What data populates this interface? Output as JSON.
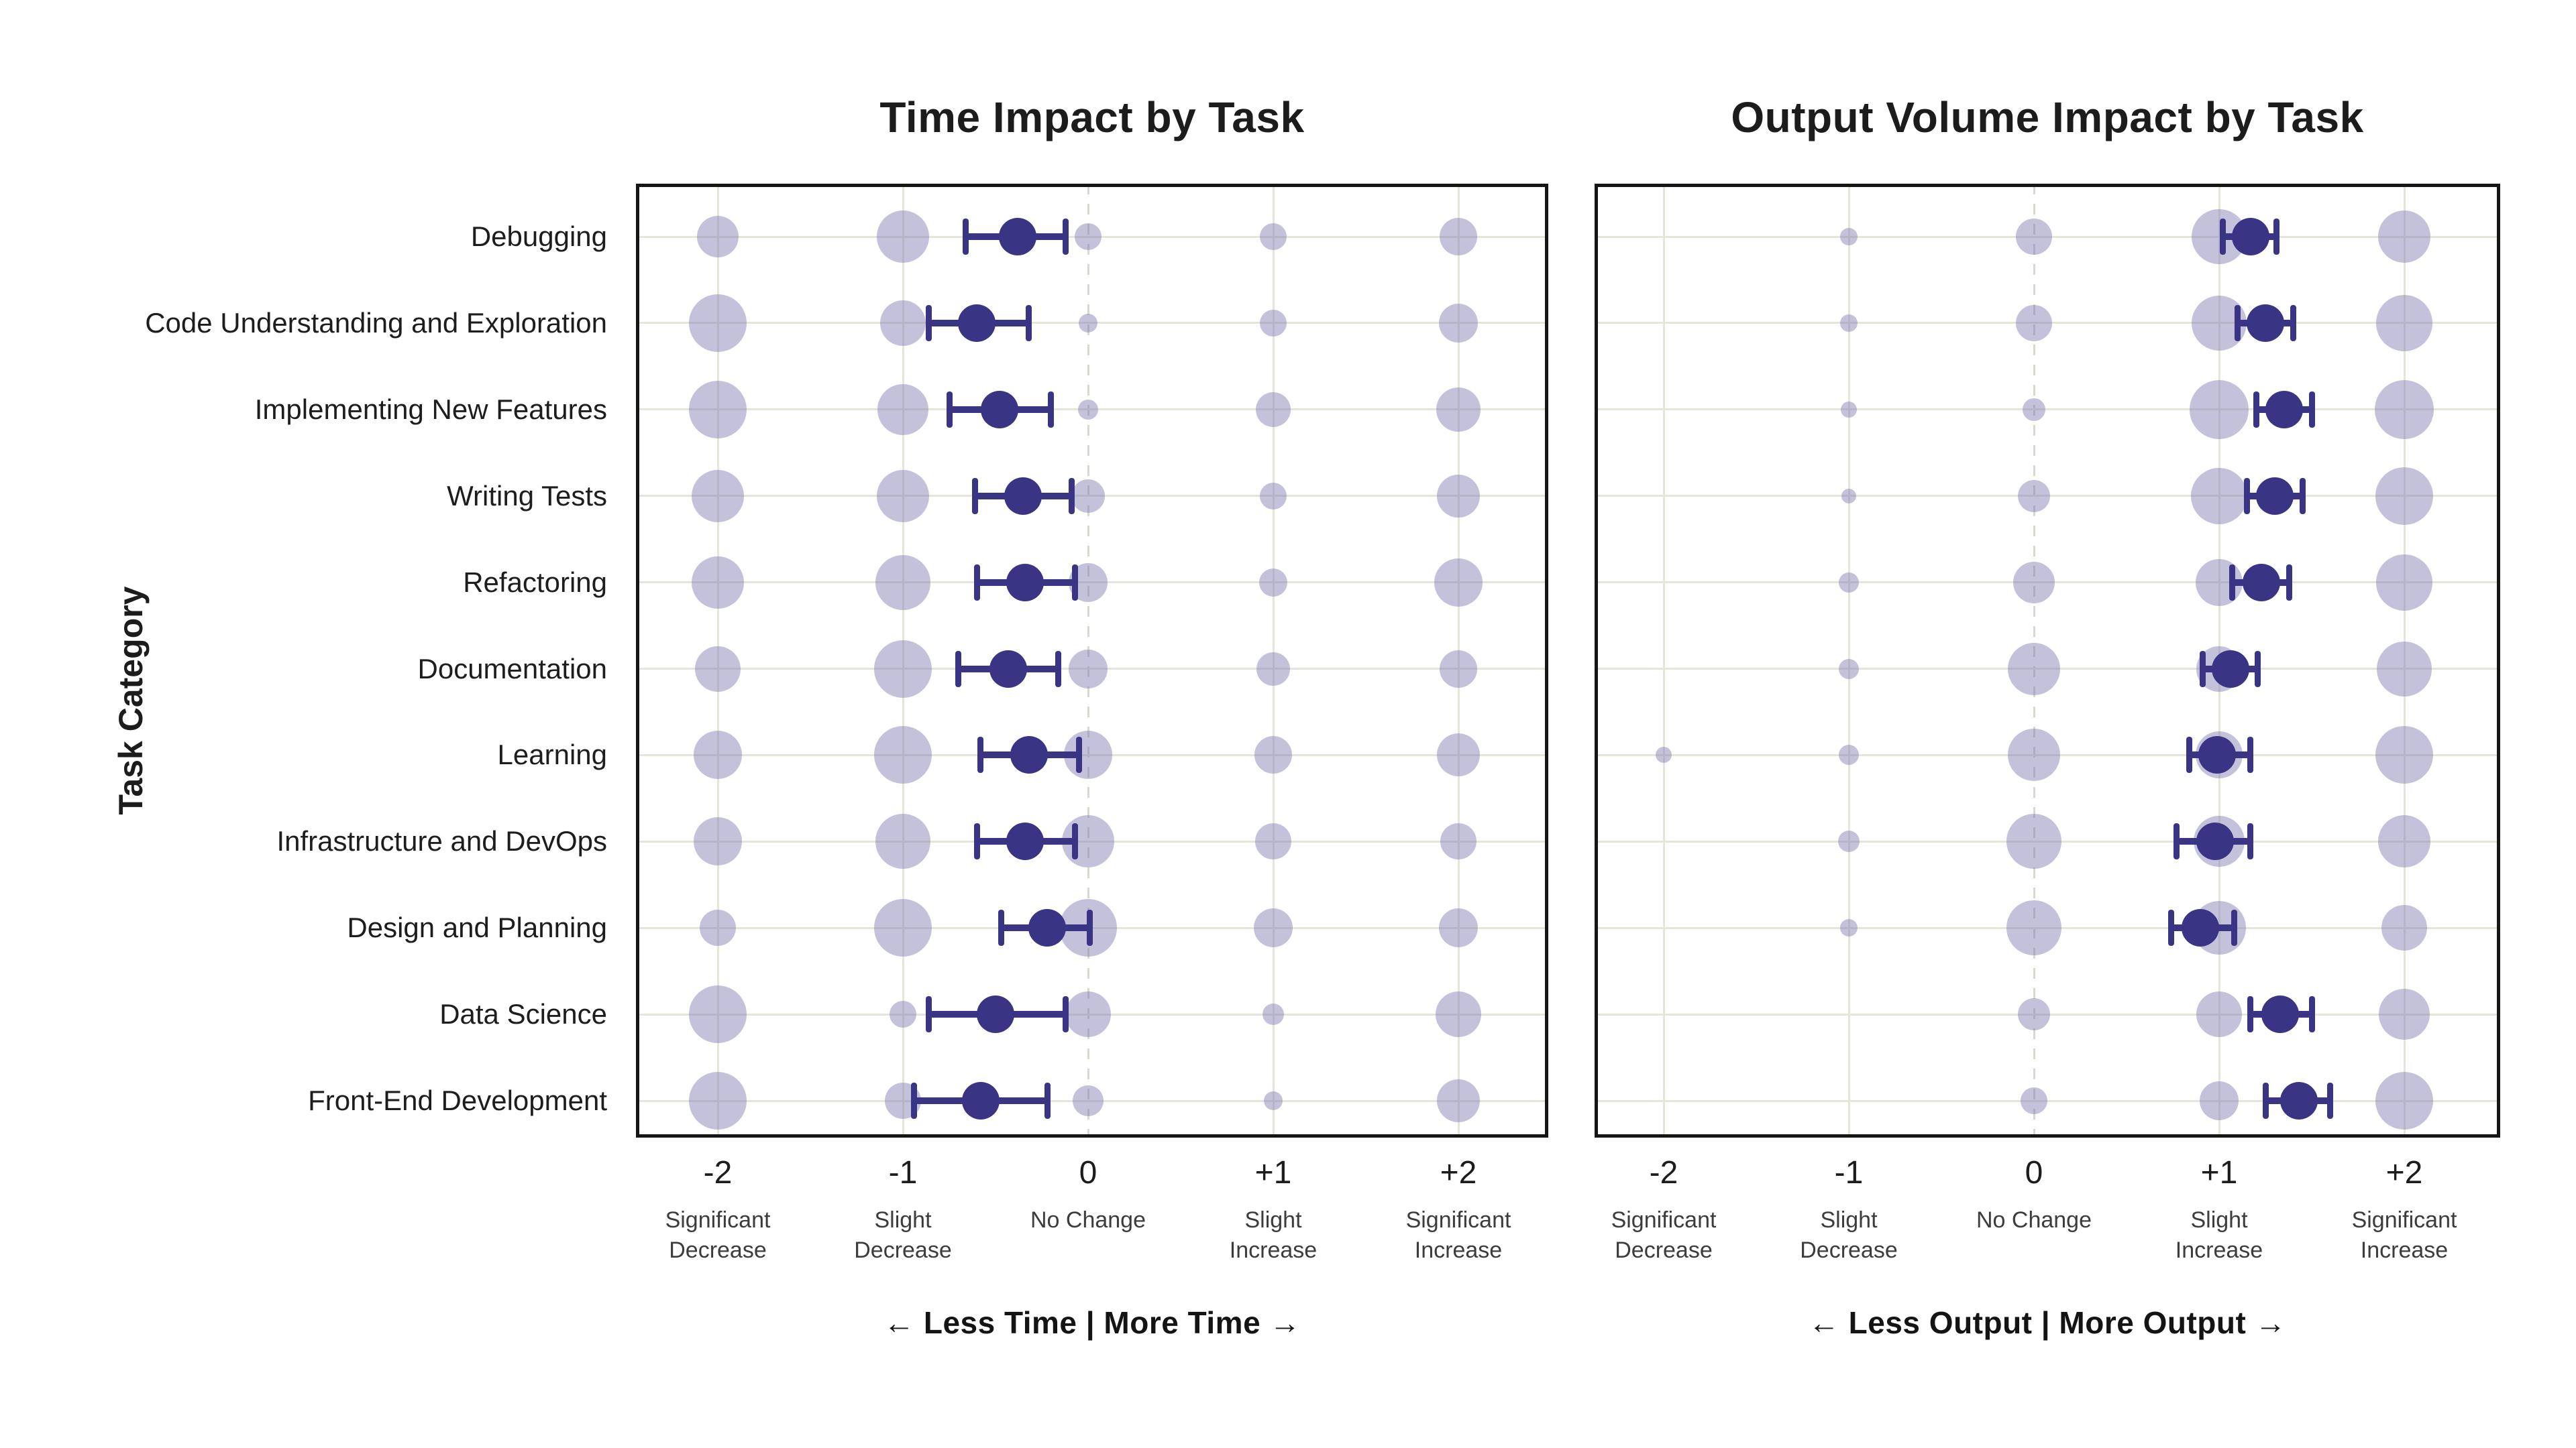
{
  "y_axis_label": "Task Category",
  "categories": [
    "Debugging",
    "Code Understanding and Exploration",
    "Implementing New Features",
    "Writing Tests",
    "Refactoring",
    "Documentation",
    "Learning",
    "Infrastructure and DevOps",
    "Design and Planning",
    "Data Science",
    "Front-End Development"
  ],
  "colors": {
    "accent": "#3a3484",
    "bubble_fill": "rgba(124,119,174,0.45)",
    "grid": "#e5e5da",
    "zero_line": "#d8d8cf",
    "frame": "#161616",
    "text": "#1c1c1c",
    "muted_text": "#3c3c3c"
  },
  "chart_data": [
    {
      "type": "scatter",
      "title": "Time Impact by Task",
      "annotation": "←  Less Time  |  More Time  →",
      "xlim": [
        -2.5,
        2.5
      ],
      "grid": true,
      "legend": "none",
      "size_encoding": "bubble value = radius in px, proportional to response share",
      "x_ticks": {
        "values": [
          -2,
          -1,
          0,
          1,
          2
        ],
        "labels": [
          "-2",
          "-1",
          "0",
          "+1",
          "+2"
        ],
        "sublabels": [
          "Significant\nDecrease",
          "Slight\nDecrease",
          "No Change",
          "Slight\nIncrease",
          "Significant\nIncrease"
        ]
      },
      "rows": [
        {
          "category": "Debugging",
          "mean": -0.38,
          "ci": [
            -0.66,
            -0.12
          ],
          "bubbles": {
            "-2": 31,
            "-1": 39,
            "0": 20,
            "1": 20,
            "2": 28
          }
        },
        {
          "category": "Code Understanding and Exploration",
          "mean": -0.6,
          "ci": [
            -0.86,
            -0.32
          ],
          "bubbles": {
            "-2": 43,
            "-1": 34,
            "0": 14,
            "1": 20,
            "2": 29
          }
        },
        {
          "category": "Implementing New Features",
          "mean": -0.48,
          "ci": [
            -0.75,
            -0.2
          ],
          "bubbles": {
            "-2": 43,
            "-1": 38,
            "0": 15,
            "1": 26,
            "2": 33
          }
        },
        {
          "category": "Writing Tests",
          "mean": -0.35,
          "ci": [
            -0.61,
            -0.09
          ],
          "bubbles": {
            "-2": 39,
            "-1": 39,
            "0": 25,
            "1": 20,
            "2": 32
          }
        },
        {
          "category": "Refactoring",
          "mean": -0.34,
          "ci": [
            -0.6,
            -0.07
          ],
          "bubbles": {
            "-2": 39,
            "-1": 41,
            "0": 29,
            "1": 21,
            "2": 36
          }
        },
        {
          "category": "Documentation",
          "mean": -0.43,
          "ci": [
            -0.7,
            -0.16
          ],
          "bubbles": {
            "-2": 34,
            "-1": 43,
            "0": 29,
            "1": 25,
            "2": 28
          }
        },
        {
          "category": "Learning",
          "mean": -0.32,
          "ci": [
            -0.58,
            -0.05
          ],
          "bubbles": {
            "-2": 36,
            "-1": 43,
            "0": 36,
            "1": 28,
            "2": 32
          }
        },
        {
          "category": "Infrastructure and DevOps",
          "mean": -0.34,
          "ci": [
            -0.6,
            -0.07
          ],
          "bubbles": {
            "-2": 36,
            "-1": 41,
            "0": 39,
            "1": 27,
            "2": 27
          }
        },
        {
          "category": "Design and Planning",
          "mean": -0.22,
          "ci": [
            -0.47,
            0.01
          ],
          "bubbles": {
            "-2": 27,
            "-1": 43,
            "0": 43,
            "1": 29,
            "2": 29
          }
        },
        {
          "category": "Data Science",
          "mean": -0.5,
          "ci": [
            -0.86,
            -0.12
          ],
          "bubbles": {
            "-2": 43,
            "-1": 20,
            "0": 34,
            "1": 16,
            "2": 34
          }
        },
        {
          "category": "Front-End Development",
          "mean": -0.58,
          "ci": [
            -0.94,
            -0.22
          ],
          "bubbles": {
            "-2": 43,
            "-1": 27,
            "0": 23,
            "1": 14,
            "2": 32
          }
        }
      ]
    },
    {
      "type": "scatter",
      "title": "Output Volume Impact by Task",
      "annotation": "←  Less Output  |  More Output  →",
      "xlim": [
        -2.5,
        2.5
      ],
      "grid": true,
      "legend": "none",
      "size_encoding": "bubble value = radius in px, proportional to response share",
      "x_ticks": {
        "values": [
          -2,
          -1,
          0,
          1,
          2
        ],
        "labels": [
          "-2",
          "-1",
          "0",
          "+1",
          "+2"
        ],
        "sublabels": [
          "Significant\nDecrease",
          "Slight\nDecrease",
          "No Change",
          "Slight\nIncrease",
          "Significant\nIncrease"
        ]
      },
      "rows": [
        {
          "category": "Debugging",
          "mean": 1.17,
          "ci": [
            1.02,
            1.31
          ],
          "bubbles": {
            "-1": 13,
            "0": 27,
            "1": 41,
            "2": 39
          }
        },
        {
          "category": "Code Understanding and Exploration",
          "mean": 1.25,
          "ci": [
            1.1,
            1.4
          ],
          "bubbles": {
            "-1": 13,
            "0": 27,
            "1": 41,
            "2": 42
          }
        },
        {
          "category": "Implementing New Features",
          "mean": 1.35,
          "ci": [
            1.2,
            1.5
          ],
          "bubbles": {
            "-1": 12,
            "0": 17,
            "1": 44,
            "2": 44
          }
        },
        {
          "category": "Writing Tests",
          "mean": 1.3,
          "ci": [
            1.15,
            1.45
          ],
          "bubbles": {
            "-1": 11,
            "0": 24,
            "1": 42,
            "2": 43
          }
        },
        {
          "category": "Refactoring",
          "mean": 1.23,
          "ci": [
            1.07,
            1.38
          ],
          "bubbles": {
            "-1": 15,
            "0": 31,
            "1": 35,
            "2": 42
          }
        },
        {
          "category": "Documentation",
          "mean": 1.06,
          "ci": [
            0.91,
            1.21
          ],
          "bubbles": {
            "-1": 15,
            "0": 39,
            "1": 34,
            "2": 41
          }
        },
        {
          "category": "Learning",
          "mean": 0.99,
          "ci": [
            0.84,
            1.17
          ],
          "bubbles": {
            "-2": 12,
            "-1": 15,
            "0": 39,
            "1": 35,
            "2": 43
          }
        },
        {
          "category": "Infrastructure and DevOps",
          "mean": 0.98,
          "ci": [
            0.77,
            1.17
          ],
          "bubbles": {
            "-1": 16,
            "0": 41,
            "1": 38,
            "2": 39
          }
        },
        {
          "category": "Design and Planning",
          "mean": 0.9,
          "ci": [
            0.74,
            1.08
          ],
          "bubbles": {
            "-1": 13,
            "0": 41,
            "1": 40,
            "2": 34
          }
        },
        {
          "category": "Data Science",
          "mean": 1.33,
          "ci": [
            1.17,
            1.5
          ],
          "bubbles": {
            "0": 24,
            "1": 34,
            "2": 38
          }
        },
        {
          "category": "Front-End Development",
          "mean": 1.43,
          "ci": [
            1.25,
            1.6
          ],
          "bubbles": {
            "0": 20,
            "1": 29,
            "2": 43
          }
        }
      ]
    }
  ]
}
